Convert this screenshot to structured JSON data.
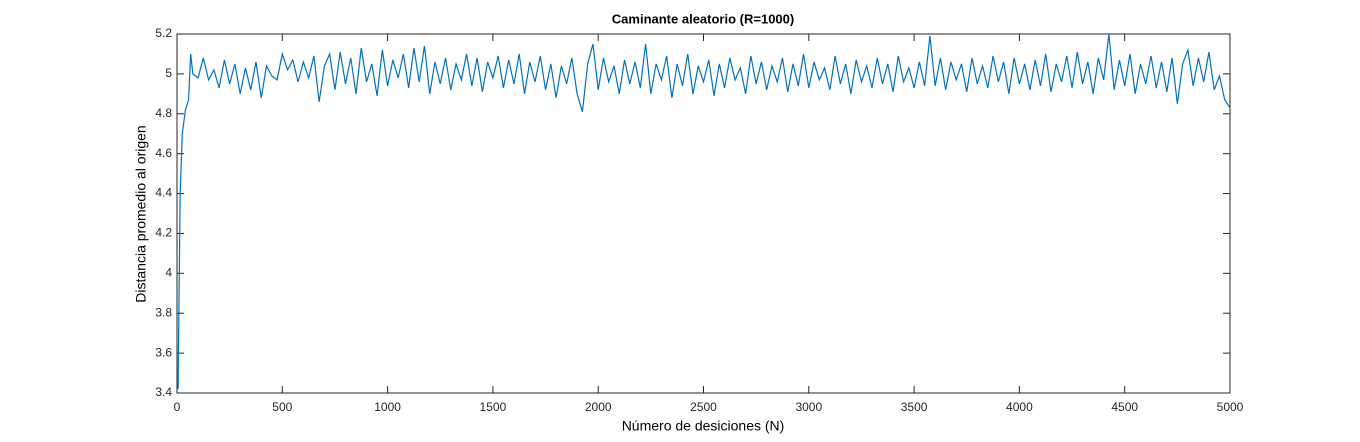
{
  "chart_data": {
    "type": "line",
    "title": "Caminante aleatorio (R=1000)",
    "x_label": "Número de desiciones (N)",
    "y_label": "Distancia promedio al origen",
    "xlim": [
      0,
      5000
    ],
    "ylim": [
      3.4,
      5.2
    ],
    "xticks": [
      0,
      500,
      1000,
      1500,
      2000,
      2500,
      3000,
      3500,
      4000,
      4500,
      5000
    ],
    "yticks": [
      3.4,
      3.6,
      3.8,
      4,
      4.2,
      4.4,
      4.6,
      4.8,
      5,
      5.2
    ],
    "grid": false,
    "x": [
      5,
      15,
      25,
      40,
      55,
      65,
      75,
      100,
      125,
      150,
      175,
      200,
      225,
      250,
      275,
      300,
      325,
      350,
      375,
      400,
      425,
      450,
      475,
      500,
      525,
      550,
      575,
      600,
      625,
      650,
      675,
      700,
      725,
      750,
      775,
      800,
      825,
      850,
      875,
      900,
      925,
      950,
      975,
      1000,
      1025,
      1050,
      1075,
      1100,
      1125,
      1150,
      1175,
      1200,
      1225,
      1250,
      1275,
      1300,
      1325,
      1350,
      1375,
      1400,
      1425,
      1450,
      1475,
      1500,
      1525,
      1550,
      1575,
      1600,
      1625,
      1650,
      1675,
      1700,
      1725,
      1750,
      1775,
      1800,
      1825,
      1850,
      1875,
      1900,
      1925,
      1950,
      1975,
      2000,
      2025,
      2050,
      2075,
      2100,
      2125,
      2150,
      2175,
      2200,
      2225,
      2250,
      2275,
      2300,
      2325,
      2350,
      2375,
      2400,
      2425,
      2450,
      2475,
      2500,
      2525,
      2550,
      2575,
      2600,
      2625,
      2650,
      2675,
      2700,
      2725,
      2750,
      2775,
      2800,
      2825,
      2850,
      2875,
      2900,
      2925,
      2950,
      2975,
      3000,
      3025,
      3050,
      3075,
      3100,
      3125,
      3150,
      3175,
      3200,
      3225,
      3250,
      3275,
      3300,
      3325,
      3350,
      3375,
      3400,
      3425,
      3450,
      3475,
      3500,
      3525,
      3550,
      3575,
      3600,
      3625,
      3650,
      3675,
      3700,
      3725,
      3750,
      3775,
      3800,
      3825,
      3850,
      3875,
      3900,
      3925,
      3950,
      3975,
      4000,
      4025,
      4050,
      4075,
      4100,
      4125,
      4150,
      4175,
      4200,
      4225,
      4250,
      4275,
      4300,
      4325,
      4350,
      4375,
      4400,
      4425,
      4450,
      4475,
      4500,
      4525,
      4550,
      4575,
      4600,
      4625,
      4650,
      4675,
      4700,
      4725,
      4750,
      4775,
      4800,
      4825,
      4850,
      4875,
      4900,
      4925,
      4950,
      4975,
      5000
    ],
    "series": [
      {
        "color": "#0072bd",
        "values": [
          3.42,
          4.4,
          4.7,
          4.82,
          4.87,
          5.1,
          5.0,
          4.98,
          5.08,
          4.97,
          5.02,
          4.93,
          5.07,
          4.95,
          5.05,
          4.9,
          5.03,
          4.92,
          5.06,
          4.88,
          5.04,
          4.99,
          4.97,
          5.1,
          5.02,
          5.07,
          4.96,
          5.06,
          4.98,
          5.09,
          4.86,
          5.04,
          5.1,
          4.92,
          5.11,
          4.95,
          5.08,
          4.9,
          5.13,
          4.96,
          5.05,
          4.89,
          5.12,
          4.94,
          5.07,
          4.98,
          5.1,
          4.93,
          5.13,
          4.96,
          5.14,
          4.9,
          5.06,
          4.95,
          5.08,
          4.92,
          5.05,
          4.97,
          5.1,
          4.94,
          5.08,
          4.91,
          5.06,
          4.98,
          5.09,
          4.93,
          5.07,
          4.95,
          5.1,
          4.9,
          5.06,
          4.96,
          5.09,
          4.92,
          5.05,
          4.88,
          5.04,
          4.95,
          5.08,
          4.9,
          4.81,
          5.05,
          5.15,
          4.92,
          5.08,
          4.96,
          5.04,
          4.9,
          5.07,
          4.95,
          5.06,
          4.93,
          5.15,
          4.9,
          5.05,
          4.97,
          5.09,
          4.88,
          5.05,
          4.94,
          5.1,
          4.9,
          5.04,
          4.96,
          5.07,
          4.89,
          5.05,
          4.93,
          5.08,
          4.97,
          5.03,
          4.9,
          5.09,
          4.95,
          5.06,
          4.92,
          5.04,
          4.96,
          5.08,
          4.91,
          5.05,
          4.94,
          5.1,
          4.93,
          5.06,
          4.97,
          5.03,
          4.92,
          5.09,
          4.95,
          5.05,
          4.9,
          5.07,
          4.96,
          5.04,
          4.93,
          5.08,
          4.95,
          5.05,
          4.91,
          5.09,
          4.96,
          5.03,
          4.93,
          5.06,
          4.94,
          5.19,
          4.94,
          5.08,
          4.92,
          5.06,
          4.97,
          5.05,
          4.91,
          5.08,
          4.95,
          5.04,
          4.93,
          5.09,
          4.96,
          5.06,
          4.9,
          5.08,
          4.95,
          5.05,
          4.92,
          5.07,
          4.94,
          5.1,
          4.91,
          5.05,
          4.96,
          5.09,
          4.93,
          5.11,
          4.95,
          5.06,
          4.9,
          5.08,
          4.97,
          5.2,
          4.92,
          5.07,
          4.94,
          5.1,
          4.9,
          5.05,
          4.95,
          5.09,
          4.93,
          5.06,
          4.91,
          5.08,
          4.85,
          5.05,
          5.12,
          4.94,
          5.08,
          4.96,
          5.11,
          4.92,
          4.99,
          4.87,
          4.83
        ]
      }
    ]
  }
}
